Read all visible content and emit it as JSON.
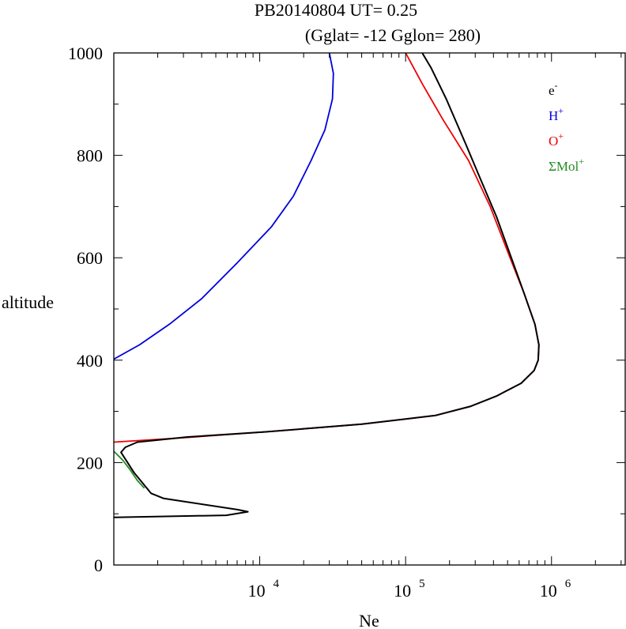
{
  "chart_data": {
    "type": "line",
    "title": "PB20140804   UT=  0.25",
    "subtitle": "(Gglat= -12   Gglon=  280)",
    "xlabel": "Ne",
    "ylabel": "altitude",
    "x_scale": "log",
    "xlim": [
      1000,
      3200000
    ],
    "ylim": [
      0,
      1000
    ],
    "x_ticks": [
      {
        "base": "10",
        "exp": "4",
        "value": 10000
      },
      {
        "base": "10",
        "exp": "5",
        "value": 100000
      },
      {
        "base": "10",
        "exp": "6",
        "value": 1000000
      }
    ],
    "y_ticks": [
      "0",
      "200",
      "400",
      "600",
      "800",
      "1000"
    ],
    "legend_position": "top-right",
    "series": [
      {
        "name": "e",
        "sup": "-",
        "color": "#000000",
        "points": [
          [
            1000,
            93
          ],
          [
            5900,
            97
          ],
          [
            8300,
            104
          ],
          [
            7100,
            108
          ],
          [
            2200,
            130
          ],
          [
            1800,
            140
          ],
          [
            1380,
            180
          ],
          [
            1120,
            220
          ],
          [
            1200,
            230
          ],
          [
            1450,
            240
          ],
          [
            3200,
            250
          ],
          [
            11000,
            260
          ],
          [
            50000,
            275
          ],
          [
            160000,
            292
          ],
          [
            280000,
            310
          ],
          [
            420000,
            330
          ],
          [
            620000,
            355
          ],
          [
            760000,
            380
          ],
          [
            810000,
            400
          ],
          [
            820000,
            430
          ],
          [
            770000,
            470
          ],
          [
            650000,
            530
          ],
          [
            530000,
            600
          ],
          [
            420000,
            680
          ],
          [
            330000,
            750
          ],
          [
            260000,
            820
          ],
          [
            190000,
            910
          ],
          [
            150000,
            970
          ],
          [
            130000,
            1000
          ]
        ]
      },
      {
        "name": "H",
        "sup": "+",
        "color": "#0000dd",
        "points": [
          [
            1000,
            402
          ],
          [
            1500,
            430
          ],
          [
            2400,
            470
          ],
          [
            4000,
            520
          ],
          [
            7000,
            590
          ],
          [
            12000,
            660
          ],
          [
            17000,
            720
          ],
          [
            22500,
            790
          ],
          [
            28000,
            850
          ],
          [
            31500,
            910
          ],
          [
            32000,
            960
          ],
          [
            30000,
            1000
          ]
        ]
      },
      {
        "name": "O",
        "sup": "+",
        "color": "#ee0000",
        "points": [
          [
            1000,
            240
          ],
          [
            3200,
            249
          ],
          [
            11000,
            260
          ],
          [
            50000,
            275
          ],
          [
            160000,
            292
          ],
          [
            280000,
            310
          ],
          [
            420000,
            330
          ],
          [
            620000,
            355
          ],
          [
            760000,
            380
          ],
          [
            810000,
            400
          ],
          [
            820000,
            430
          ],
          [
            770000,
            470
          ],
          [
            650000,
            530
          ],
          [
            520000,
            600
          ],
          [
            380000,
            700
          ],
          [
            270000,
            790
          ],
          [
            180000,
            870
          ],
          [
            130000,
            940
          ],
          [
            100000,
            1000
          ]
        ]
      },
      {
        "name": "ΣMol",
        "sup": "+",
        "color": "#228b22",
        "points": [
          [
            1000,
            222
          ],
          [
            1150,
            205
          ],
          [
            1300,
            185
          ],
          [
            1450,
            165
          ],
          [
            1620,
            150
          ]
        ]
      }
    ]
  }
}
